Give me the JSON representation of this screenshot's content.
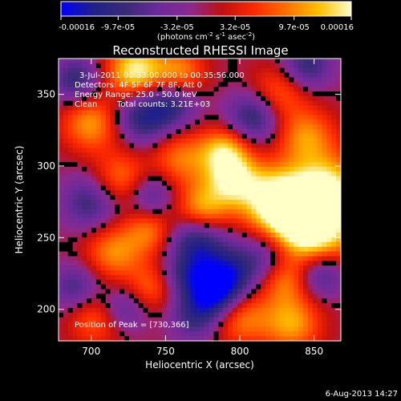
{
  "chart_data": {
    "type": "heatmap",
    "title": "Reconstructed RHESSI Image",
    "xlabel": "Heliocentric X (arcsec)",
    "ylabel": "Heliocentric Y (arcsec)",
    "xlim": [
      678,
      868
    ],
    "ylim": [
      178,
      375
    ],
    "x_ticks": [
      700,
      750,
      800,
      850
    ],
    "y_ticks": [
      200,
      250,
      300,
      350
    ],
    "colorbar": {
      "range": [
        -0.00016,
        0.00016
      ],
      "tick_values": [
        -0.00016,
        -9.7e-05,
        -3.2e-05,
        3.2e-05,
        9.7e-05,
        0.00016
      ],
      "tick_labels": [
        "-0.00016",
        "-9.7e-05",
        "-3.2e-05",
        "3.2e-05",
        "9.7e-05",
        "0.00016"
      ],
      "unit_label_parts": [
        "(photons cm",
        "-2",
        " s",
        "-1",
        " asec",
        "-2",
        ")"
      ],
      "colormap": [
        "#0000ff",
        "#20208a",
        "#3a2a78",
        "#6a2a9a",
        "#8a2a90",
        "#c01010",
        "#ff2a00",
        "#ff7000",
        "#ffc000",
        "#ffffc8"
      ]
    },
    "annotations": {
      "time_range": "3-Jul-2011 00:33:00.000 to 00:35:56.000",
      "detectors": "Detectors: 4F 5F 6F 7F 8F, Att 0",
      "energy_range": "Energy Range: 25.0 - 50.0 keV",
      "clean": "Clean",
      "total_counts": "Total counts: 3.21E+03",
      "peak": "Position of Peak = [730,366]"
    },
    "peak_position": [
      730,
      366
    ],
    "sources": [
      {
        "x": 730,
        "y": 366,
        "amp": 0.00016,
        "r": 14
      },
      {
        "x": 790,
        "y": 310,
        "amp": 0.00013,
        "r": 12
      },
      {
        "x": 795,
        "y": 290,
        "amp": 0.00012,
        "r": 12
      },
      {
        "x": 850,
        "y": 255,
        "amp": 0.00015,
        "r": 22
      },
      {
        "x": 835,
        "y": 265,
        "amp": 0.00013,
        "r": 18
      },
      {
        "x": 860,
        "y": 285,
        "amp": 0.00012,
        "r": 16
      },
      {
        "x": 820,
        "y": 280,
        "amp": 0.0001,
        "r": 16
      },
      {
        "x": 775,
        "y": 270,
        "amp": 0.00012,
        "r": 13
      },
      {
        "x": 760,
        "y": 305,
        "amp": 9e-05,
        "r": 14
      },
      {
        "x": 720,
        "y": 290,
        "amp": 0.0001,
        "r": 14
      },
      {
        "x": 700,
        "y": 330,
        "amp": 0.00011,
        "r": 14
      },
      {
        "x": 760,
        "y": 365,
        "amp": 0.0001,
        "r": 12
      },
      {
        "x": 825,
        "y": 350,
        "amp": 9e-05,
        "r": 14
      },
      {
        "x": 845,
        "y": 320,
        "amp": 0.0001,
        "r": 14
      },
      {
        "x": 715,
        "y": 240,
        "amp": 0.0001,
        "r": 14
      },
      {
        "x": 740,
        "y": 255,
        "amp": 9e-05,
        "r": 12
      },
      {
        "x": 705,
        "y": 195,
        "amp": 0.0001,
        "r": 14
      },
      {
        "x": 740,
        "y": 215,
        "amp": 8e-05,
        "r": 12
      },
      {
        "x": 800,
        "y": 195,
        "amp": 0.0001,
        "r": 14
      },
      {
        "x": 835,
        "y": 190,
        "amp": 0.00011,
        "r": 14
      },
      {
        "x": 830,
        "y": 220,
        "amp": 8e-05,
        "r": 12
      },
      {
        "x": 765,
        "y": 235,
        "amp": 8e-05,
        "r": 12
      },
      {
        "x": 735,
        "y": 335,
        "amp": -0.00012,
        "r": 14
      },
      {
        "x": 690,
        "y": 360,
        "amp": -0.0001,
        "r": 12
      },
      {
        "x": 700,
        "y": 275,
        "amp": -0.0001,
        "r": 14
      },
      {
        "x": 770,
        "y": 245,
        "amp": -0.00016,
        "r": 14
      },
      {
        "x": 765,
        "y": 225,
        "amp": -0.00012,
        "r": 12
      },
      {
        "x": 820,
        "y": 240,
        "amp": -0.0001,
        "r": 14
      },
      {
        "x": 795,
        "y": 225,
        "amp": -0.0001,
        "r": 13
      },
      {
        "x": 785,
        "y": 210,
        "amp": -0.00014,
        "r": 12
      },
      {
        "x": 855,
        "y": 225,
        "amp": -0.00012,
        "r": 12
      },
      {
        "x": 720,
        "y": 200,
        "amp": -0.0001,
        "r": 12
      },
      {
        "x": 810,
        "y": 335,
        "amp": -0.00012,
        "r": 13
      },
      {
        "x": 845,
        "y": 370,
        "amp": -0.0001,
        "r": 12
      },
      {
        "x": 755,
        "y": 345,
        "amp": -9e-05,
        "r": 12
      },
      {
        "x": 770,
        "y": 195,
        "amp": -9e-05,
        "r": 12
      },
      {
        "x": 690,
        "y": 215,
        "amp": -9e-05,
        "r": 12
      },
      {
        "x": 740,
        "y": 280,
        "amp": -9e-05,
        "r": 12
      }
    ]
  },
  "footer": {
    "date_stamp": "6-Aug-2013 14:27"
  }
}
